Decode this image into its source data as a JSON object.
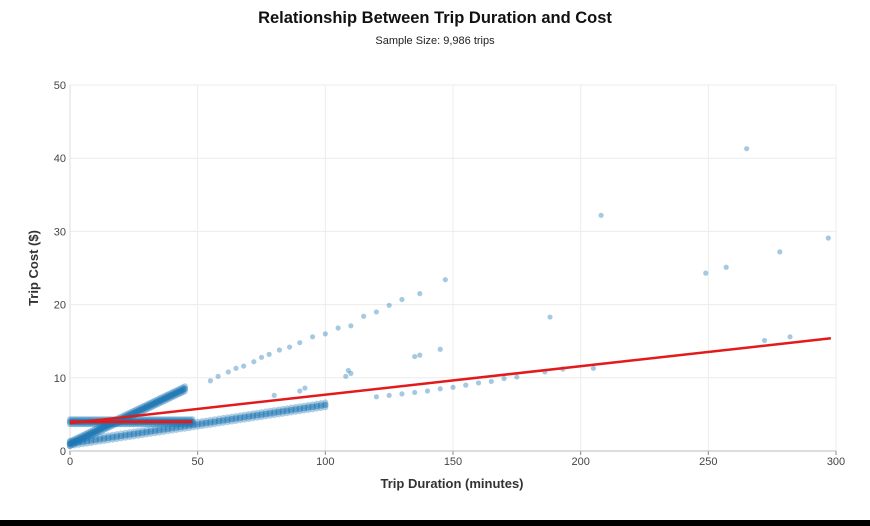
{
  "chart_data": {
    "type": "scatter",
    "title": "Relationship Between Trip Duration and Cost",
    "subtitle": "Sample Size: 9,986 trips",
    "xlabel": "Trip Duration (minutes)",
    "ylabel": "Trip Cost ($)",
    "xlim": [
      0,
      300
    ],
    "ylim": [
      0,
      50
    ],
    "xticks": [
      "0",
      "50",
      "100",
      "150",
      "200",
      "250",
      "300"
    ],
    "yticks": [
      "0",
      "10",
      "20",
      "30",
      "40",
      "50"
    ],
    "grid": true,
    "point_color": "#1f77b4",
    "bands": [
      {
        "x_start": 0,
        "x_end": 45,
        "y_start": 1.0,
        "y_end": 8.5
      },
      {
        "x_start": 0,
        "x_end": 100,
        "y_start": 1.0,
        "y_end": 6.3
      },
      {
        "x_start": 0,
        "x_end": 48,
        "y_start": 4.0,
        "y_end": 4.0
      }
    ],
    "points": [
      [
        55,
        9.6
      ],
      [
        58,
        10.2
      ],
      [
        62,
        10.8
      ],
      [
        65,
        11.3
      ],
      [
        68,
        11.6
      ],
      [
        72,
        12.2
      ],
      [
        75,
        12.8
      ],
      [
        78,
        13.2
      ],
      [
        82,
        13.8
      ],
      [
        86,
        14.2
      ],
      [
        90,
        14.8
      ],
      [
        95,
        15.6
      ],
      [
        100,
        16.0
      ],
      [
        105,
        16.8
      ],
      [
        110,
        17.1
      ],
      [
        115,
        18.4
      ],
      [
        120,
        19.0
      ],
      [
        125,
        19.9
      ],
      [
        130,
        20.7
      ],
      [
        137,
        21.5
      ],
      [
        147,
        23.4
      ],
      [
        135,
        12.9
      ],
      [
        137,
        13.1
      ],
      [
        145,
        13.9
      ],
      [
        108,
        10.2
      ],
      [
        109,
        11.0
      ],
      [
        110,
        10.6
      ],
      [
        80,
        7.6
      ],
      [
        90,
        8.2
      ],
      [
        92,
        8.6
      ],
      [
        188,
        18.3
      ],
      [
        208,
        32.2
      ],
      [
        249,
        24.3
      ],
      [
        257,
        25.1
      ],
      [
        265,
        41.3
      ],
      [
        278,
        27.2
      ],
      [
        297,
        29.1
      ],
      [
        272,
        15.1
      ],
      [
        282,
        15.6
      ],
      [
        186,
        10.8
      ],
      [
        193,
        11.2
      ],
      [
        205,
        11.3
      ],
      [
        120,
        7.4
      ],
      [
        125,
        7.6
      ],
      [
        130,
        7.8
      ],
      [
        135,
        8.0
      ],
      [
        140,
        8.2
      ],
      [
        145,
        8.5
      ],
      [
        150,
        8.7
      ],
      [
        155,
        9.0
      ],
      [
        160,
        9.3
      ],
      [
        165,
        9.5
      ],
      [
        170,
        9.9
      ],
      [
        175,
        10.1
      ]
    ],
    "regression_line": {
      "color": "#e31a1c",
      "points": [
        [
          0,
          3.8
        ],
        [
          298,
          15.4
        ]
      ]
    },
    "mean_line": {
      "color": "#e31a1c",
      "points": [
        [
          0,
          4.0
        ],
        [
          48,
          4.0
        ]
      ]
    }
  }
}
